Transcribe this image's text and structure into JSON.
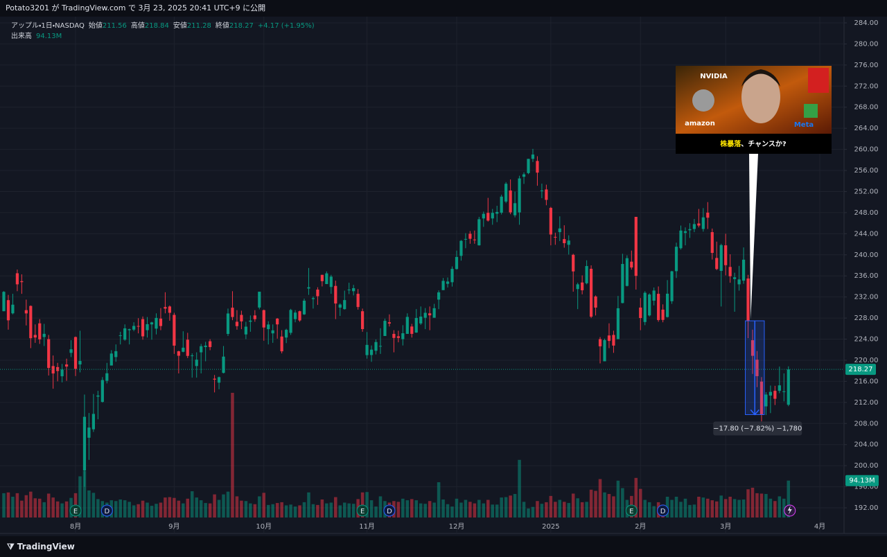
{
  "top_bar": {
    "text": "Potato3201 が TradingView.com で 3月 23, 2025 20:41 UTC+9 に公開"
  },
  "footer": {
    "brand": "TradingView"
  },
  "chart_data": {
    "type": "candlestick",
    "symbol": "アップル・1日・NASDAQ",
    "labels": {
      "open": "始値",
      "high": "高値",
      "low": "安値",
      "close": "終値",
      "volume": "出来高"
    },
    "change": "+4.17 (+1.95%)",
    "volume_last_label": "94.13M",
    "up_color": "#089981",
    "down_color": "#f23645",
    "grid": true,
    "ylim": [
      187.8,
      285.05
    ],
    "yticks": [
      {
        "value": 284,
        "label": "284.00"
      },
      {
        "value": 280,
        "label": "280.00"
      },
      {
        "value": 276,
        "label": "276.00"
      },
      {
        "value": 272,
        "label": "272.00"
      },
      {
        "value": 268,
        "label": "268.00"
      },
      {
        "value": 264,
        "label": "264.00"
      },
      {
        "value": 260,
        "label": "260.00"
      },
      {
        "value": 256,
        "label": "256.00"
      },
      {
        "value": 252,
        "label": "252.00"
      },
      {
        "value": 248,
        "label": "248.00"
      },
      {
        "value": 244,
        "label": "244.00"
      },
      {
        "value": 240,
        "label": "240.00"
      },
      {
        "value": 236,
        "label": "236.00"
      },
      {
        "value": 232,
        "label": "232.00"
      },
      {
        "value": 228,
        "label": "228.00"
      },
      {
        "value": 224,
        "label": "224.00"
      },
      {
        "value": 220,
        "label": "220.00"
      },
      {
        "value": 216,
        "label": "216.00"
      },
      {
        "value": 212,
        "label": "212.00"
      },
      {
        "value": 208,
        "label": "208.00"
      },
      {
        "value": 204,
        "label": "204.00"
      },
      {
        "value": 200,
        "label": "200.00"
      },
      {
        "value": 196,
        "label": "196.00"
      },
      {
        "value": 192,
        "label": "192.00"
      }
    ],
    "xlim": [
      -0.85,
      187.4
    ],
    "xticks": [
      {
        "value": 16,
        "label": "8月"
      },
      {
        "value": 38,
        "label": "9月"
      },
      {
        "value": 58,
        "label": "10月"
      },
      {
        "value": 81,
        "label": "11月"
      },
      {
        "value": 101,
        "label": "12月"
      },
      {
        "value": 122,
        "label": "2025"
      },
      {
        "value": 142,
        "label": "2月"
      },
      {
        "value": 161,
        "label": "3月"
      },
      {
        "value": 182,
        "label": "4月"
      }
    ],
    "open": [
      229.3,
      231.4,
      228.9,
      236.5,
      235.0,
      229.5,
      230.3,
      224.8,
      227.0,
      224.4,
      224.0,
      218.9,
      218.7,
      216.96,
      219.2,
      221.4,
      224.4,
      219.2,
      199.1,
      205.3,
      206.9,
      213.1,
      212.1,
      216.1,
      219.0,
      220.6,
      224.6,
      223.9,
      225.7,
      225.8,
      226.5,
      227.8,
      225.7,
      226.8,
      226.0,
      227.9,
      230.1,
      230.2,
      228.6,
      221.7,
      221.6,
      223.9,
      220.8,
      218.9,
      221.5,
      222.5,
      223.6,
      216.5,
      215.75,
      217.6,
      224.99,
      229.97,
      227.3,
      228.6,
      224.9,
      227.3,
      228.5,
      230.0,
      229.5,
      225.9,
      225.1,
      227.9,
      224.5,
      224.3,
      225.2,
      227.8,
      229.3,
      228.7,
      233.6,
      231.6,
      233.4,
      236.2,
      234.45,
      233.9,
      234.1,
      229.98,
      229.7,
      233.3,
      233.1,
      232.6,
      229.3,
      220.97,
      220.99,
      221.8,
      222.6,
      224.6,
      227.2,
      225.0,
      224.55,
      224.0,
      225.0,
      226.4,
      225.25,
      226.98,
      228.06,
      228.9,
      228.06,
      231.5,
      233.3,
      234.5,
      234.8,
      237.3,
      239.8,
      242.9,
      243.99,
      242.9,
      241.8,
      246.9,
      247.96,
      246.9,
      247.8,
      247.99,
      250.1,
      252.2,
      247.5,
      248.04,
      254.8,
      255.5,
      258.2,
      257.8,
      252.2,
      252.4,
      248.9,
      243.4,
      244.3,
      242.98,
      241.9,
      240.0,
      233.5,
      234.75,
      234.6,
      237.35,
      232.1,
      224.0,
      219.8,
      224.7,
      224.8,
      224.0,
      230.85,
      234.1,
      238.7,
      247.2,
      229.99,
      227.25,
      228.5,
      231.3,
      232.6,
      229.6,
      228.2,
      231.2,
      236.9,
      241.25,
      244.15,
      244.66,
      244.9,
      245.95,
      244.9,
      248.0,
      244.3,
      239.4,
      236.95,
      241.8,
      237.7,
      235.4,
      234.4,
      235.1,
      235.5,
      223.8,
      220.1,
      215.95,
      211.25,
      213.3,
      214.2,
      214.2,
      213.99,
      211.56
    ],
    "high": [
      233.1,
      232.4,
      232.6,
      237.2,
      236.3,
      231.5,
      230.4,
      226.8,
      227.8,
      226.9,
      224.8,
      220.9,
      219.5,
      219.3,
      220.3,
      223.8,
      224.5,
      225.6,
      213.5,
      209.99,
      213.6,
      214.2,
      216.8,
      219.5,
      221.9,
      223.0,
      225.4,
      226.8,
      225.99,
      227.2,
      227.98,
      228.3,
      228.2,
      227.3,
      228.9,
      229.9,
      232.9,
      230.4,
      229.0,
      221.8,
      225.5,
      225.2,
      221.3,
      221.5,
      223.1,
      223.5,
      224.0,
      217.2,
      216.9,
      222.7,
      229.8,
      233.1,
      229.5,
      229.4,
      227.3,
      228.5,
      229.5,
      233.0,
      229.6,
      227.4,
      226.8,
      228.0,
      225.7,
      225.98,
      229.75,
      229.5,
      229.4,
      231.7,
      237.5,
      232.1,
      233.85,
      236.2,
      236.85,
      236.2,
      235.1,
      230.8,
      233.2,
      234.7,
      234.3,
      233.5,
      229.8,
      225.35,
      222.8,
      223.95,
      226.07,
      227.9,
      228.7,
      225.7,
      225.6,
      226.65,
      228.9,
      226.9,
      229.7,
      230.2,
      229.9,
      230.2,
      230.7,
      233.25,
      235.6,
      235.7,
      237.8,
      240.8,
      242.8,
      244.1,
      244.5,
      244.6,
      247.2,
      248.2,
      250.8,
      248.7,
      249.3,
      251.4,
      253.8,
      254.3,
      252.0,
      255.0,
      255.65,
      258.2,
      260.1,
      258.7,
      253.5,
      253.3,
      249.1,
      244.2,
      247.3,
      245.6,
      243.7,
      240.2,
      234.7,
      236.1,
      238.96,
      238.0,
      232.3,
      224.4,
      224.1,
      227.0,
      225.6,
      232.2,
      240.2,
      239.9,
      240.8,
      247.2,
      231.8,
      233.1,
      232.7,
      233.8,
      234.0,
      230.6,
      235.2,
      236.96,
      242.3,
      245.55,
      245.2,
      246.0,
      246.8,
      248.7,
      248.86,
      250.0,
      244.98,
      242.5,
      242.1,
      244.0,
      240.1,
      236.6,
      237.9,
      241.4,
      236.2,
      225.8,
      221.75,
      216.8,
      213.95,
      215.2,
      215.15,
      218.8,
      217.5,
      218.84
    ],
    "low": [
      229.3,
      225.8,
      228.7,
      233.1,
      232.6,
      226.6,
      222.3,
      223.3,
      223.1,
      222.7,
      217.1,
      214.6,
      216.0,
      215.8,
      216.1,
      220.6,
      217.0,
      217.7,
      196.0,
      201.1,
      206.4,
      208.8,
      211.97,
      215.6,
      219.0,
      219.7,
      223.0,
      223.7,
      223.0,
      225.5,
      225.1,
      223.9,
      224.3,
      223.9,
      224.9,
      225.7,
      228.9,
      227.5,
      221.2,
      217.5,
      221.5,
      220.4,
      216.7,
      216.7,
      217.5,
      219.8,
      221.9,
      213.9,
      214.5,
      217.5,
      224.6,
      227.6,
      225.8,
      225.9,
      224.0,
      225.4,
      227.3,
      229.65,
      223.7,
      223.0,
      223.3,
      224.1,
      221.3,
      223.25,
      224.8,
      227.2,
      227.3,
      228.6,
      232.4,
      229.8,
      230.5,
      234.0,
      234.45,
      232.6,
      227.8,
      228.4,
      229.6,
      232.55,
      232.3,
      229.6,
      225.4,
      220.3,
      219.7,
      221.1,
      221.2,
      224.6,
      226.4,
      221.5,
      223.4,
      222.8,
      225.0,
      224.3,
      225.2,
      226.7,
      225.9,
      225.7,
      228.06,
      229.7,
      233.3,
      233.8,
      233.97,
      237.2,
      238.9,
      241.25,
      242.1,
      242.1,
      241.75,
      245.3,
      246.3,
      245.7,
      246.2,
      247.65,
      249.8,
      247.7,
      247.1,
      245.7,
      253.45,
      255.3,
      257.6,
      253.1,
      250.75,
      249.4,
      241.8,
      241.9,
      242.6,
      241.35,
      240.05,
      233.0,
      229.7,
      232.5,
      234.4,
      228.0,
      228.5,
      219.4,
      219.8,
      222.3,
      221.4,
      224.0,
      230.8,
      234.0,
      237.2,
      233.4,
      225.7,
      226.65,
      228.3,
      230.4,
      227.3,
      227.2,
      228.1,
      230.7,
      235.6,
      240.99,
      241.8,
      243.2,
      244.3,
      245.2,
      244.4,
      244.9,
      239.1,
      237.1,
      230.2,
      236.1,
      234.7,
      229.2,
      233.2,
      234.5,
      224.2,
      217.4,
      214.9,
      208.4,
      209.6,
      209.97,
      211.5,
      213.75,
      212.2,
      211.28
    ],
    "close": [
      232.98,
      227.57,
      230.54,
      234.4,
      234.82,
      228.88,
      224.18,
      224.31,
      223.96,
      225.01,
      218.54,
      217.49,
      217.96,
      218.24,
      218.8,
      222.08,
      218.36,
      219.86,
      209.27,
      207.23,
      209.82,
      213.31,
      216.24,
      217.53,
      221.27,
      221.72,
      224.72,
      226.05,
      225.89,
      226.51,
      226.4,
      224.53,
      226.84,
      227.18,
      228.03,
      226.49,
      229.79,
      229.0,
      222.77,
      220.85,
      222.38,
      220.82,
      220.91,
      220.11,
      222.66,
      222.77,
      222.5,
      216.32,
      216.79,
      220.69,
      228.87,
      228.2,
      226.47,
      227.37,
      226.37,
      227.52,
      227.79,
      233.0,
      226.21,
      226.78,
      225.67,
      226.8,
      221.69,
      225.77,
      229.54,
      229.04,
      227.55,
      231.3,
      233.85,
      231.78,
      232.15,
      235.0,
      236.48,
      235.86,
      230.76,
      230.57,
      231.41,
      233.4,
      233.67,
      230.1,
      225.91,
      222.91,
      222.01,
      223.45,
      222.72,
      227.48,
      226.96,
      224.23,
      224.23,
      225.12,
      228.22,
      225.0,
      228.02,
      228.28,
      229.0,
      228.52,
      229.87,
      232.87,
      235.06,
      234.93,
      237.33,
      239.59,
      242.65,
      243.01,
      243.04,
      242.84,
      246.75,
      247.77,
      246.49,
      247.96,
      248.13,
      251.04,
      253.48,
      248.05,
      249.79,
      254.49,
      255.27,
      258.2,
      259.02,
      255.59,
      252.2,
      250.42,
      243.85,
      243.36,
      245.0,
      242.21,
      242.7,
      236.85,
      234.4,
      233.28,
      237.87,
      228.26,
      229.98,
      222.64,
      223.83,
      223.66,
      222.78,
      229.86,
      238.26,
      239.36,
      237.59,
      236.0,
      228.01,
      232.8,
      232.47,
      233.22,
      227.63,
      227.65,
      232.62,
      236.87,
      241.53,
      244.6,
      244.47,
      244.87,
      245.83,
      245.55,
      247.1,
      247.04,
      240.36,
      237.3,
      241.84,
      238.03,
      235.93,
      235.74,
      235.33,
      239.07,
      227.48,
      220.84,
      216.98,
      209.68,
      213.49,
      214.0,
      212.69,
      215.24,
      214.1,
      218.27
    ],
    "volume": [
      62,
      64,
      53,
      62,
      43,
      57,
      66,
      49,
      48,
      39,
      61,
      51,
      41,
      36,
      41,
      50,
      62,
      105,
      119,
      69,
      63,
      47,
      42,
      38,
      44,
      42,
      46,
      44,
      40,
      31,
      34,
      43,
      38,
      30,
      35,
      38,
      51,
      52,
      50,
      43,
      36,
      48,
      67,
      51,
      44,
      37,
      36,
      59,
      45,
      59,
      66,
      318,
      54,
      43,
      42,
      36,
      34,
      54,
      63,
      32,
      34,
      37,
      39,
      31,
      33,
      28,
      31,
      39,
      64,
      34,
      32,
      46,
      36,
      38,
      52,
      31,
      38,
      36,
      35,
      47,
      64,
      65,
      44,
      28,
      54,
      42,
      38,
      42,
      40,
      48,
      44,
      47,
      44,
      36,
      35,
      42,
      38,
      90,
      46,
      34,
      28,
      48,
      38,
      45,
      40,
      36,
      45,
      36,
      45,
      33,
      33,
      51,
      52,
      56,
      60,
      147,
      40,
      23,
      27,
      42,
      35,
      39,
      55,
      40,
      45,
      40,
      37,
      61,
      49,
      39,
      40,
      71,
      68,
      98,
      64,
      60,
      54,
      94,
      75,
      45,
      55,
      101,
      73,
      45,
      39,
      29,
      39,
      33,
      53,
      45,
      53,
      40,
      48,
      32,
      33,
      53,
      51,
      48,
      44,
      41,
      56,
      47,
      53,
      47,
      45,
      46,
      72,
      76,
      62,
      61,
      60,
      48,
      42,
      54,
      48,
      94.13
    ],
    "events": [
      {
        "label": "E",
        "x": 16
      },
      {
        "label": "D",
        "x": 23
      },
      {
        "label": "E",
        "x": 80
      },
      {
        "label": "D",
        "x": 86
      },
      {
        "label": "E",
        "x": 140
      },
      {
        "label": "D",
        "x": 147
      }
    ],
    "measure": {
      "start": 166,
      "end": 169,
      "label": "−17.80 (−7.82%) −1,780"
    }
  },
  "thumbnail": {
    "logos": [
      "NVIDIA",
      "amazon",
      "Meta"
    ],
    "caption_highlight": "株暴落",
    "caption_rest": "、チャンスか?"
  }
}
